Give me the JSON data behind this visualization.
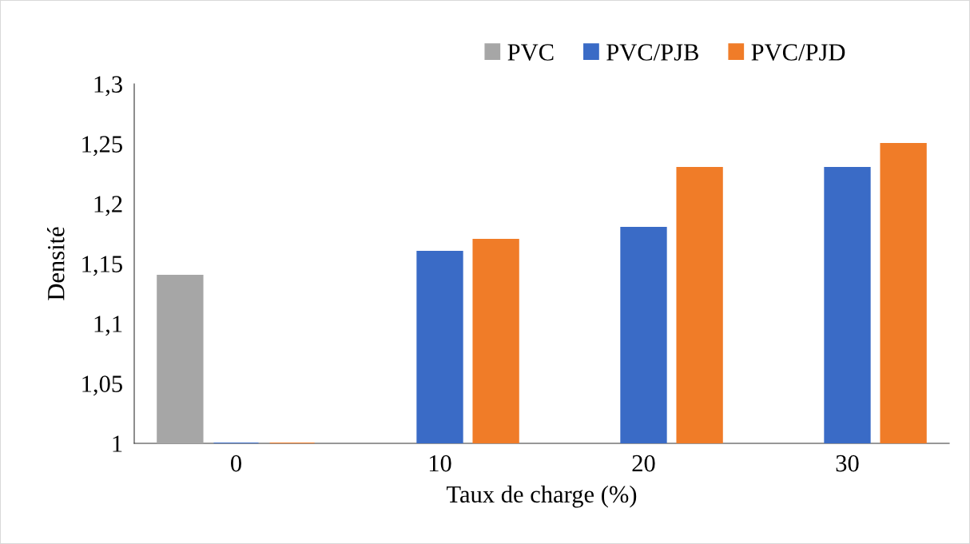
{
  "chart_data": {
    "type": "bar",
    "xlabel": "Taux de charge (%)",
    "ylabel": "Densité",
    "categories": [
      "0",
      "10",
      "20",
      "30"
    ],
    "series": [
      {
        "name": "PVC",
        "color": "#a6a6a6",
        "values": [
          1.14,
          null,
          null,
          null
        ]
      },
      {
        "name": "PVC/PJB",
        "color": "#3a6bc6",
        "values": [
          1,
          1.16,
          1.18,
          1.23
        ]
      },
      {
        "name": "PVC/PJD",
        "color": "#f07c28",
        "values": [
          1,
          1.17,
          1.23,
          1.25
        ]
      }
    ],
    "ylim": [
      1,
      1.3
    ],
    "yticks": [
      {
        "value": 1,
        "label": "1"
      },
      {
        "value": 1.05,
        "label": "1,05"
      },
      {
        "value": 1.1,
        "label": "1,1"
      },
      {
        "value": 1.15,
        "label": "1,15"
      },
      {
        "value": 1.2,
        "label": "1,2"
      },
      {
        "value": 1.25,
        "label": "1,25"
      },
      {
        "value": 1.3,
        "label": "1,3"
      }
    ],
    "grid": false,
    "legend": "top right"
  }
}
